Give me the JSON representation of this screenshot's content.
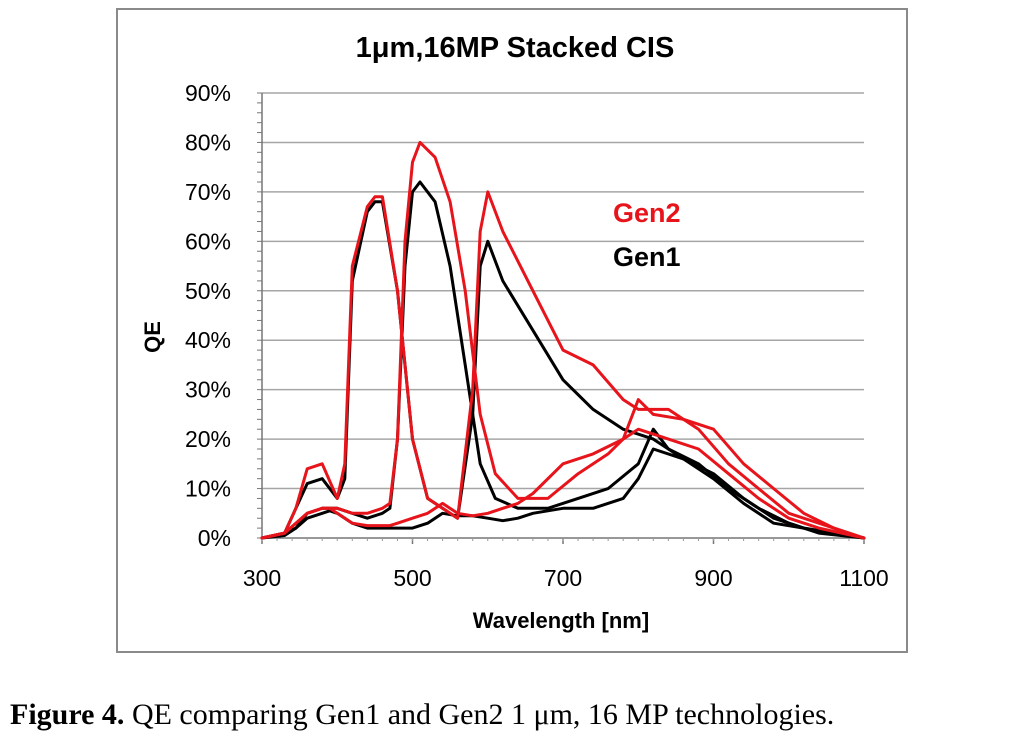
{
  "chart_data": {
    "type": "line",
    "title": "1μm,16MP Stacked CIS",
    "xlabel": "Wavelength [nm]",
    "ylabel": "QE",
    "xlim": [
      300,
      1100
    ],
    "ylim": [
      0,
      90
    ],
    "x_ticks": [
      "300",
      "500",
      "700",
      "900",
      "1100"
    ],
    "y_ticks": [
      "0%",
      "10%",
      "20%",
      "30%",
      "40%",
      "50%",
      "60%",
      "70%",
      "80%",
      "90%"
    ],
    "grid": "horizontal",
    "legend_position": "top-right",
    "series": [
      {
        "name": "Gen2",
        "color": "#e8141b",
        "channel": "blue",
        "x": [
          300,
          330,
          345,
          360,
          380,
          390,
          400,
          420,
          440,
          460,
          470,
          480,
          500,
          520,
          540,
          560,
          580,
          600,
          620,
          640,
          660,
          700,
          740,
          780,
          800,
          840,
          880,
          920,
          960,
          1000,
          1040,
          1100
        ],
        "y": [
          0,
          1,
          3,
          5,
          6,
          6,
          5,
          3,
          2.5,
          2.5,
          2.5,
          3,
          4,
          5,
          7,
          5,
          4.5,
          5,
          6,
          7,
          9,
          15,
          17,
          20,
          22,
          20,
          18,
          13,
          8,
          4,
          2,
          0
        ]
      },
      {
        "name": "Gen2",
        "color": "#e8141b",
        "channel": "green",
        "x": [
          300,
          330,
          345,
          360,
          380,
          400,
          420,
          440,
          460,
          470,
          480,
          490,
          500,
          510,
          530,
          550,
          570,
          590,
          610,
          640,
          680,
          720,
          760,
          780,
          800,
          820,
          860,
          900,
          940,
          980,
          1020,
          1060,
          1100
        ],
        "y": [
          0,
          1,
          3,
          5,
          6,
          6,
          5,
          5,
          6,
          7,
          20,
          60,
          76,
          80,
          77,
          68,
          50,
          25,
          13,
          8,
          8,
          13,
          17,
          20,
          28,
          25,
          24,
          22,
          15,
          10,
          5,
          2,
          0
        ]
      },
      {
        "name": "Gen2",
        "color": "#e8141b",
        "channel": "red",
        "x": [
          300,
          330,
          345,
          360,
          380,
          400,
          410,
          420,
          440,
          450,
          460,
          480,
          500,
          520,
          560,
          580,
          590,
          600,
          620,
          660,
          700,
          740,
          780,
          800,
          840,
          880,
          920,
          960,
          1000,
          1040,
          1080,
          1100
        ],
        "y": [
          0,
          1,
          6,
          14,
          15,
          8,
          15,
          55,
          67,
          69,
          69,
          50,
          20,
          8,
          4,
          30,
          62,
          70,
          62,
          50,
          38,
          35,
          28,
          26,
          26,
          22,
          15,
          10,
          5,
          3,
          1,
          0
        ]
      },
      {
        "name": "Gen1",
        "color": "#000000",
        "channel": "blue",
        "x": [
          300,
          330,
          345,
          360,
          380,
          390,
          400,
          420,
          440,
          460,
          480,
          500,
          520,
          540,
          560,
          580,
          600,
          620,
          640,
          660,
          700,
          740,
          780,
          800,
          820,
          860,
          900,
          940,
          980,
          1020,
          1060,
          1100
        ],
        "y": [
          0,
          0.5,
          2,
          4,
          5,
          5.5,
          5,
          3,
          2,
          2,
          2,
          2,
          3,
          5,
          4.5,
          4.5,
          4,
          3.5,
          4,
          5,
          6,
          6,
          8,
          12,
          18,
          16,
          13,
          8,
          4,
          2,
          1,
          0
        ]
      },
      {
        "name": "Gen1",
        "color": "#000000",
        "channel": "green",
        "x": [
          300,
          330,
          345,
          360,
          380,
          400,
          420,
          440,
          460,
          470,
          480,
          490,
          500,
          510,
          530,
          550,
          570,
          590,
          610,
          640,
          680,
          720,
          760,
          800,
          820,
          840,
          880,
          920,
          960,
          1000,
          1040,
          1100
        ],
        "y": [
          0,
          1,
          2,
          5,
          6,
          6,
          5,
          4,
          5,
          6,
          20,
          55,
          70,
          72,
          68,
          55,
          35,
          15,
          8,
          6,
          6,
          8,
          10,
          15,
          22,
          18,
          15,
          10,
          6,
          3,
          1,
          0
        ]
      },
      {
        "name": "Gen1",
        "color": "#000000",
        "channel": "red",
        "x": [
          300,
          330,
          345,
          360,
          380,
          400,
          410,
          420,
          440,
          450,
          460,
          480,
          500,
          520,
          560,
          580,
          590,
          600,
          620,
          660,
          700,
          740,
          780,
          820,
          860,
          900,
          940,
          980,
          1020,
          1060,
          1100
        ],
        "y": [
          0,
          1,
          6,
          11,
          12,
          8,
          12,
          52,
          66,
          68,
          68,
          50,
          20,
          8,
          4,
          25,
          55,
          60,
          52,
          42,
          32,
          26,
          22,
          20,
          16,
          12,
          7,
          3,
          2,
          1,
          0
        ]
      }
    ]
  },
  "legend": {
    "gen2": {
      "label": "Gen2",
      "color": "#e8141b"
    },
    "gen1": {
      "label": "Gen1",
      "color": "#000000"
    }
  },
  "caption": {
    "bold": "Figure 4.",
    "text": " QE comparing Gen1 and Gen2 1 μm, 16 MP technologies."
  },
  "colors": {
    "grid": "#a6a6a6",
    "frame": "#8a8a8a"
  }
}
